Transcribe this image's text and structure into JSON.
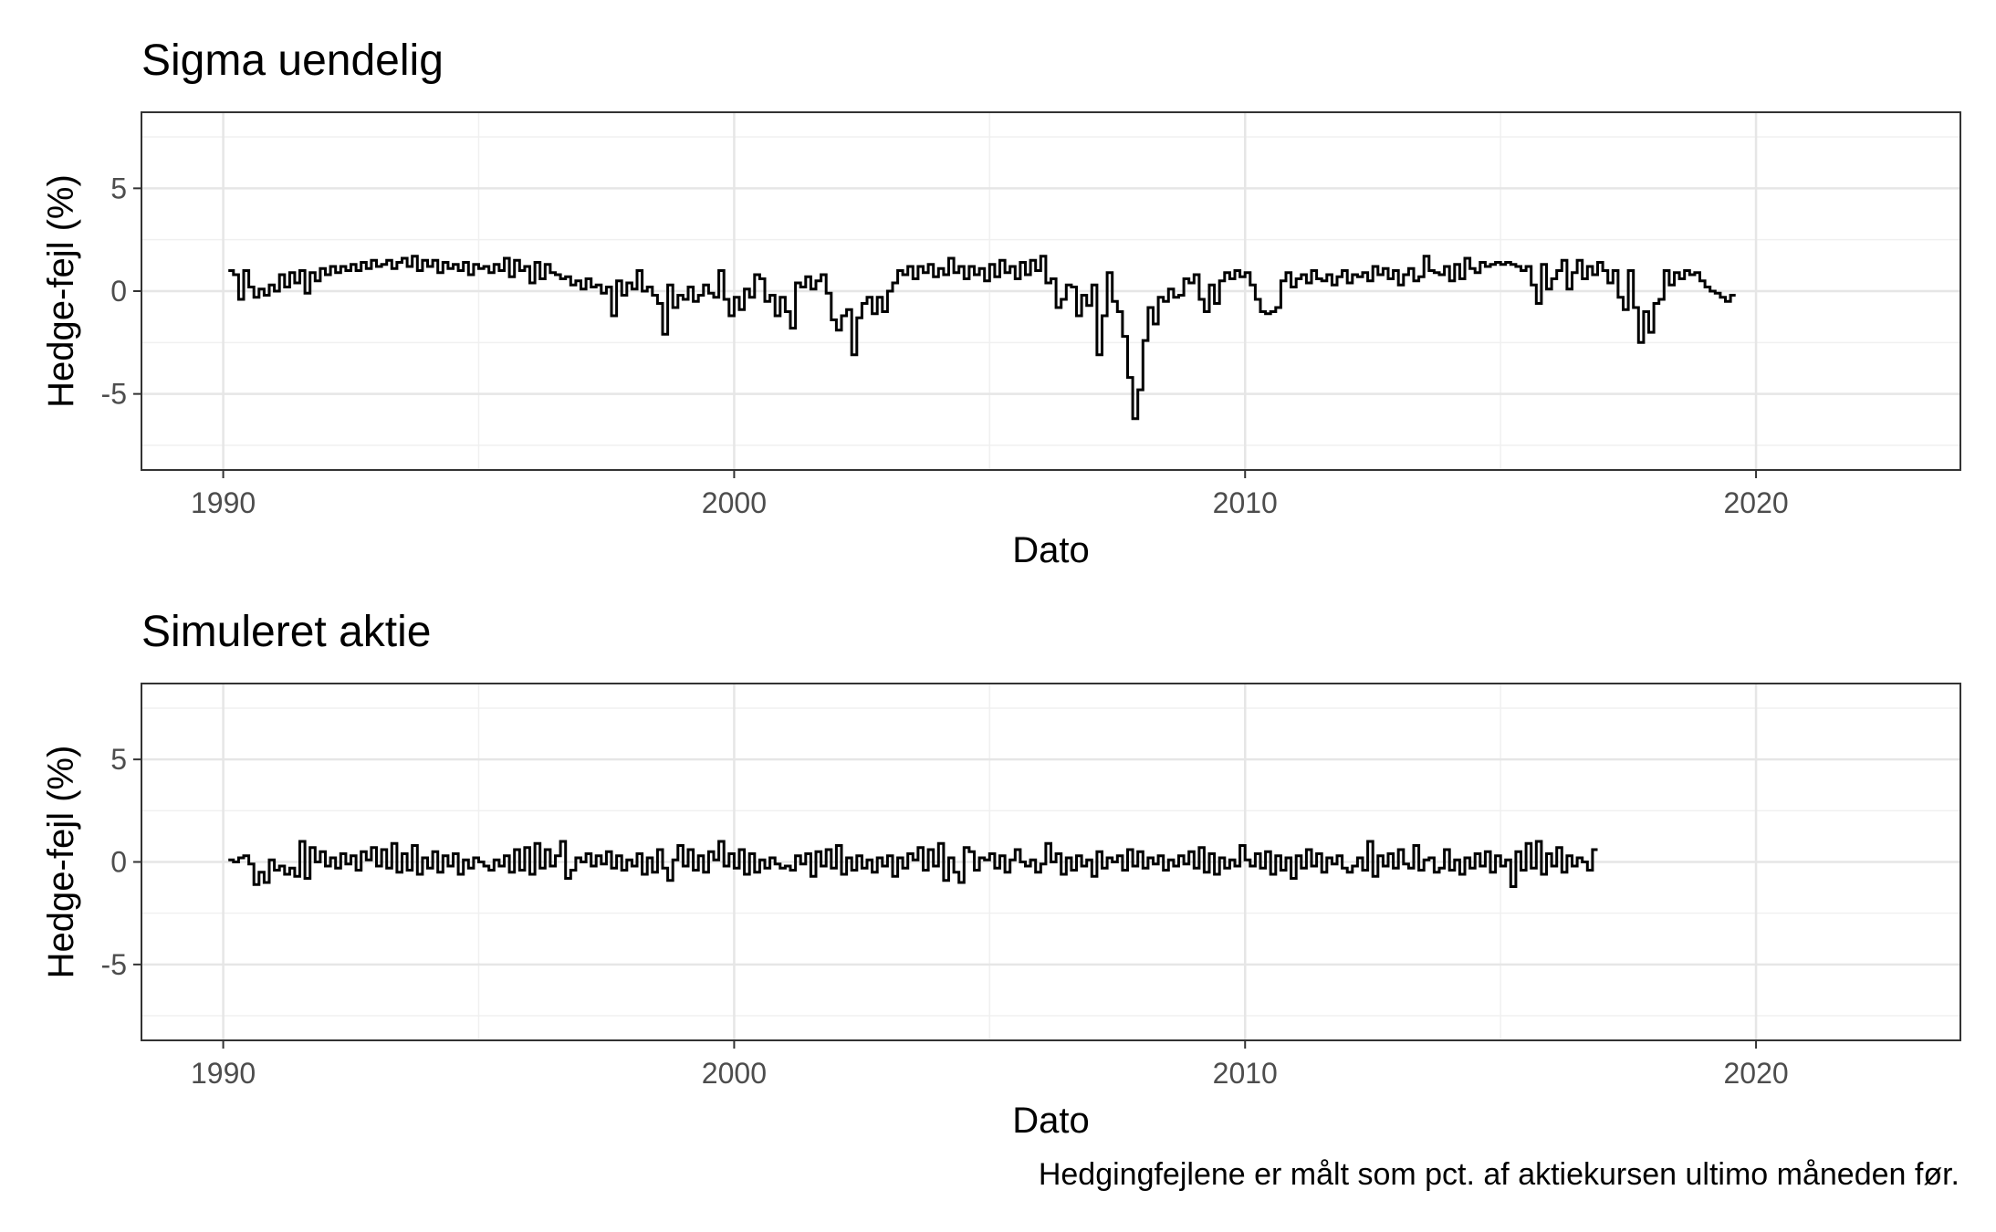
{
  "caption": "Hedgingfejlene er målt som pct. af aktiekursen ultimo måneden før.",
  "chart_data": [
    {
      "type": "line",
      "step": true,
      "title": "Sigma uendelig",
      "xlabel": "Dato",
      "ylabel": "Hedge-fejl (%)",
      "x_ticks": [
        1990,
        2000,
        2010,
        2020
      ],
      "y_ticks": [
        -5,
        0,
        5
      ],
      "xlim": [
        1988.4,
        2024.0
      ],
      "ylim": [
        -8.7,
        8.7
      ],
      "grid": true,
      "line_color": "#000000",
      "series": [
        {
          "x_start": 1990.1,
          "x_step": 0.1,
          "values": [
            1.0,
            0.8,
            -0.4,
            1.0,
            0.2,
            -0.3,
            0.1,
            -0.2,
            0.3,
            0.0,
            0.8,
            0.2,
            0.9,
            0.4,
            1.0,
            -0.1,
            0.9,
            0.5,
            1.1,
            0.8,
            1.2,
            0.9,
            1.2,
            1.0,
            1.3,
            1.0,
            1.4,
            1.1,
            1.5,
            1.2,
            1.3,
            1.5,
            1.1,
            1.4,
            1.6,
            1.2,
            1.7,
            1.0,
            1.5,
            1.2,
            1.5,
            0.9,
            1.4,
            1.1,
            1.3,
            1.0,
            1.4,
            0.8,
            1.3,
            1.1,
            1.2,
            0.9,
            1.3,
            1.0,
            1.6,
            0.7,
            1.5,
            1.0,
            1.2,
            0.4,
            1.4,
            0.6,
            1.3,
            0.9,
            0.8,
            0.6,
            0.7,
            0.3,
            0.5,
            0.1,
            0.6,
            0.2,
            0.3,
            -0.1,
            0.2,
            -1.2,
            0.5,
            -0.2,
            0.4,
            0.1,
            1.0,
            0.0,
            0.2,
            -0.2,
            -0.6,
            -2.1,
            0.3,
            -0.8,
            -0.2,
            -0.4,
            0.2,
            -0.5,
            -0.2,
            0.3,
            -0.1,
            -0.3,
            1.0,
            -0.4,
            -1.2,
            -0.3,
            -0.9,
            0.1,
            -0.3,
            0.8,
            0.6,
            -0.5,
            -0.2,
            -1.2,
            -0.3,
            -1.0,
            -1.8,
            0.4,
            0.2,
            0.7,
            0.1,
            0.5,
            0.8,
            -0.1,
            -1.4,
            -1.9,
            -1.2,
            -0.9,
            -3.1,
            -1.3,
            -0.6,
            -0.3,
            -1.1,
            -0.3,
            -1.0,
            0.0,
            0.4,
            1.0,
            0.8,
            1.2,
            0.6,
            1.2,
            0.9,
            1.3,
            0.7,
            1.1,
            0.8,
            1.6,
            0.9,
            1.2,
            0.6,
            1.2,
            0.8,
            1.1,
            0.5,
            1.3,
            0.7,
            1.5,
            0.9,
            1.2,
            0.6,
            1.4,
            0.8,
            1.5,
            1.0,
            1.7,
            0.4,
            0.6,
            -0.8,
            -0.4,
            0.3,
            0.2,
            -1.2,
            -0.2,
            -0.7,
            0.3,
            -3.1,
            -1.2,
            0.9,
            -0.5,
            -1.0,
            -2.2,
            -4.2,
            -6.2,
            -4.8,
            -2.4,
            -0.8,
            -1.6,
            -0.3,
            -0.5,
            0.1,
            -0.3,
            -0.2,
            0.6,
            0.4,
            0.8,
            -0.4,
            -1.0,
            0.3,
            -0.6,
            0.5,
            0.9,
            0.6,
            1.0,
            0.7,
            0.9,
            0.3,
            -0.4,
            -1.0,
            -1.1,
            -1.0,
            -0.8,
            0.5,
            0.9,
            0.2,
            0.6,
            0.8,
            0.4,
            1.0,
            0.6,
            0.5,
            0.8,
            0.3,
            0.7,
            1.0,
            0.4,
            0.8,
            0.7,
            0.9,
            0.5,
            1.2,
            0.8,
            1.1,
            0.6,
            1.0,
            0.3,
            0.8,
            1.1,
            0.5,
            0.7,
            1.7,
            1.0,
            0.9,
            0.8,
            1.2,
            0.5,
            1.3,
            0.6,
            1.6,
            1.1,
            0.9,
            1.4,
            1.2,
            1.3,
            1.4,
            1.3,
            1.4,
            1.3,
            1.2,
            1.0,
            1.2,
            0.3,
            -0.6,
            1.3,
            0.1,
            0.6,
            1.0,
            1.5,
            0.1,
            0.9,
            1.5,
            0.6,
            1.2,
            0.8,
            1.4,
            1.0,
            0.4,
            1.0,
            -0.3,
            -0.9,
            1.0,
            -0.8,
            -2.5,
            -1.0,
            -2.0,
            -0.6,
            -0.4,
            1.0,
            0.3,
            0.9,
            0.6,
            1.0,
            0.8,
            0.9,
            0.5,
            0.2,
            0.0,
            -0.1,
            -0.3,
            -0.5,
            -0.2
          ]
        }
      ]
    },
    {
      "type": "line",
      "step": true,
      "title": "Simuleret aktie",
      "xlabel": "Dato",
      "ylabel": "Hedge-fejl (%)",
      "x_ticks": [
        1990,
        2000,
        2010,
        2020
      ],
      "y_ticks": [
        -5,
        0,
        5
      ],
      "xlim": [
        1988.4,
        2024.0
      ],
      "ylim": [
        -8.7,
        8.7
      ],
      "grid": true,
      "line_color": "#000000",
      "series": [
        {
          "x_start": 1990.1,
          "x_step": 0.1,
          "values": [
            0.1,
            0.0,
            0.2,
            0.3,
            -0.1,
            -1.1,
            -0.5,
            -1.0,
            0.1,
            -0.4,
            -0.2,
            -0.6,
            -0.3,
            -0.7,
            1.0,
            -0.8,
            0.7,
            0.0,
            0.5,
            -0.2,
            0.2,
            -0.3,
            0.4,
            -0.1,
            0.3,
            -0.4,
            0.5,
            0.1,
            0.7,
            -0.2,
            0.6,
            -0.3,
            0.9,
            -0.5,
            0.4,
            -0.4,
            0.8,
            -0.6,
            0.2,
            -0.3,
            0.5,
            -0.5,
            0.3,
            -0.2,
            0.4,
            -0.6,
            0.1,
            -0.3,
            0.2,
            0.0,
            -0.2,
            -0.4,
            0.1,
            -0.2,
            0.3,
            -0.5,
            0.6,
            -0.4,
            0.7,
            -0.6,
            0.9,
            -0.3,
            0.6,
            -0.2,
            0.3,
            1.0,
            -0.8,
            -0.4,
            0.2,
            0.0,
            0.4,
            -0.2,
            0.3,
            -0.1,
            0.5,
            -0.3,
            0.3,
            -0.4,
            0.1,
            -0.2,
            0.4,
            -0.6,
            0.2,
            -0.5,
            0.6,
            -0.3,
            -0.9,
            0.1,
            0.8,
            -0.2,
            0.6,
            -0.4,
            0.3,
            -0.5,
            0.5,
            0.1,
            1.0,
            -0.2,
            0.4,
            -0.3,
            0.6,
            -0.6,
            0.4,
            -0.5,
            0.1,
            -0.3,
            0.2,
            -0.1,
            -0.3,
            -0.2,
            -0.4,
            0.3,
            -0.1,
            0.4,
            -0.7,
            0.5,
            -0.2,
            0.6,
            -0.3,
            0.8,
            -0.6,
            0.2,
            -0.4,
            0.3,
            -0.3,
            0.1,
            -0.5,
            0.2,
            -0.2,
            0.3,
            -0.7,
            0.2,
            -0.3,
            0.4,
            0.1,
            0.7,
            -0.4,
            0.6,
            -0.2,
            0.9,
            -0.9,
            0.2,
            -0.5,
            -1.0,
            0.7,
            0.5,
            -0.4,
            0.2,
            0.1,
            0.4,
            -0.3,
            0.3,
            -0.5,
            0.1,
            0.6,
            0.0,
            -0.2,
            0.1,
            -0.5,
            -0.1,
            0.9,
            0.0,
            0.4,
            -0.6,
            0.2,
            -0.4,
            0.3,
            -0.2,
            0.1,
            -0.7,
            0.5,
            -0.3,
            0.2,
            0.0,
            0.3,
            -0.4,
            0.6,
            -0.2,
            0.5,
            -0.3,
            0.2,
            -0.1,
            0.3,
            -0.4,
            0.1,
            -0.2,
            0.3,
            -0.1,
            0.5,
            -0.3,
            0.7,
            -0.5,
            0.4,
            -0.6,
            0.2,
            -0.3,
            0.1,
            -0.2,
            0.8,
            0.1,
            -0.2,
            0.4,
            -0.3,
            0.5,
            -0.6,
            0.3,
            -0.4,
            0.2,
            -0.8,
            0.3,
            -0.3,
            0.6,
            -0.2,
            0.4,
            -0.5,
            0.2,
            -0.1,
            0.3,
            -0.3,
            -0.5,
            -0.2,
            0.2,
            -0.4,
            1.0,
            -0.7,
            0.3,
            -0.2,
            0.4,
            -0.3,
            0.6,
            -0.1,
            -0.3,
            0.8,
            -0.4,
            0.1,
            0.2,
            -0.5,
            -0.3,
            0.6,
            -0.4,
            0.1,
            -0.6,
            0.2,
            -0.3,
            0.4,
            -0.2,
            0.5,
            -0.5,
            0.3,
            -0.2,
            0.1,
            -1.2,
            0.5,
            -0.4,
            0.9,
            -0.3,
            1.0,
            -0.6,
            0.4,
            -0.2,
            0.7,
            -0.5,
            0.3,
            -0.2,
            0.2,
            0.0,
            -0.4,
            0.6
          ]
        }
      ]
    }
  ]
}
